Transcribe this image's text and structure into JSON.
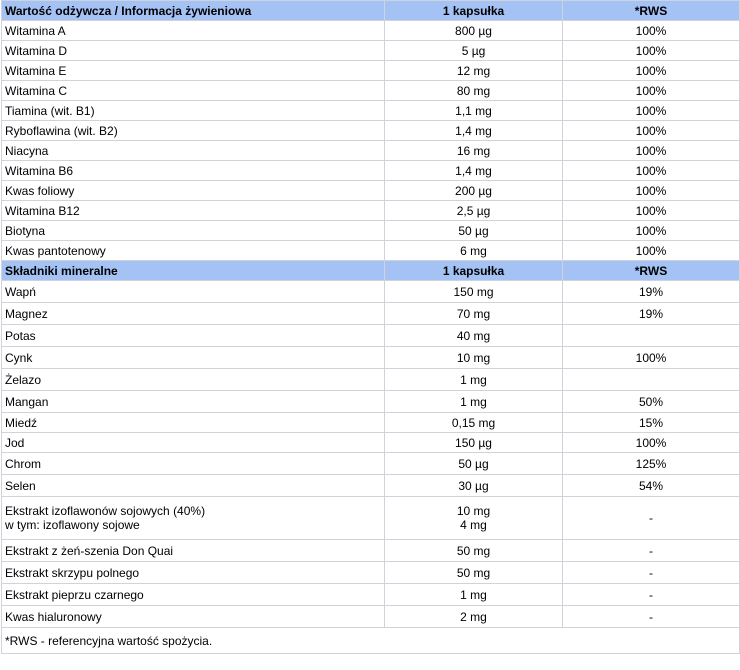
{
  "vitamins_header": {
    "name": "Wartość odżywcza / Informacja żywieniowa",
    "amount": "1 kapsułka",
    "rws": "*RWS"
  },
  "vitamins": [
    {
      "name": "Witamina A",
      "amount": "800 µg",
      "rws": "100%"
    },
    {
      "name": "Witamina D",
      "amount": "5 µg",
      "rws": "100%"
    },
    {
      "name": "Witamina E",
      "amount": "12 mg",
      "rws": "100%"
    },
    {
      "name": "Witamina C",
      "amount": "80 mg",
      "rws": "100%"
    },
    {
      "name": "Tiamina (wit. B1)",
      "amount": "1,1 mg",
      "rws": "100%"
    },
    {
      "name": "Ryboflawina (wit. B2)",
      "amount": "1,4 mg",
      "rws": "100%"
    },
    {
      "name": "Niacyna",
      "amount": "16 mg",
      "rws": "100%"
    },
    {
      "name": "Witamina B6",
      "amount": "1,4 mg",
      "rws": "100%"
    },
    {
      "name": "Kwas foliowy",
      "amount": "200 µg",
      "rws": "100%"
    },
    {
      "name": "Witamina B12",
      "amount": "2,5 µg",
      "rws": "100%"
    },
    {
      "name": "Biotyna",
      "amount": "50 µg",
      "rws": "100%"
    },
    {
      "name": "Kwas pantotenowy",
      "amount": "6 mg",
      "rws": "100%"
    }
  ],
  "minerals_header": {
    "name": "Składniki mineralne",
    "amount": "1 kapsułka",
    "rws": "*RWS"
  },
  "minerals": [
    {
      "name": "Wapń",
      "amount": "150 mg",
      "rws": "19%"
    },
    {
      "name": "Magnez",
      "amount": "70 mg",
      "rws": "19%"
    },
    {
      "name": "Potas",
      "amount": "40 mg",
      "rws": ""
    },
    {
      "name": "Cynk",
      "amount": "10 mg",
      "rws": "100%"
    },
    {
      "name": "Żelazo",
      "amount": "1 mg",
      "rws": ""
    },
    {
      "name": "Mangan",
      "amount": "1 mg",
      "rws": "50%"
    },
    {
      "name": "Miedź",
      "amount": "0,15 mg",
      "rws": "15%"
    },
    {
      "name": "Jod",
      "amount": "150 µg",
      "rws": "100%"
    },
    {
      "name": "Chrom",
      "amount": "50 µg",
      "rws": "125%"
    },
    {
      "name": "Selen",
      "amount": "30 µg",
      "rws": "54%"
    }
  ],
  "extracts": {
    "isoflavones": {
      "name_line1": "Ekstrakt izoflawonów sojowych (40%)",
      "name_line2": "w tym: izoflawony sojowe",
      "amount_line1": "10 mg",
      "amount_line2": "4 mg",
      "rws": "-"
    },
    "items": [
      {
        "name": "Ekstrakt z żeń-szenia Don Quai",
        "amount": "50 mg",
        "rws": "-"
      },
      {
        "name": "Ekstrakt skrzypu polnego",
        "amount": "50 mg",
        "rws": "-"
      },
      {
        "name": "Ekstrakt pieprzu czarnego",
        "amount": "1 mg",
        "rws": "-"
      },
      {
        "name": "Kwas hialuronowy",
        "amount": "2 mg",
        "rws": "-"
      }
    ]
  },
  "footnote": "*RWS - referencyjna wartość spożycia."
}
